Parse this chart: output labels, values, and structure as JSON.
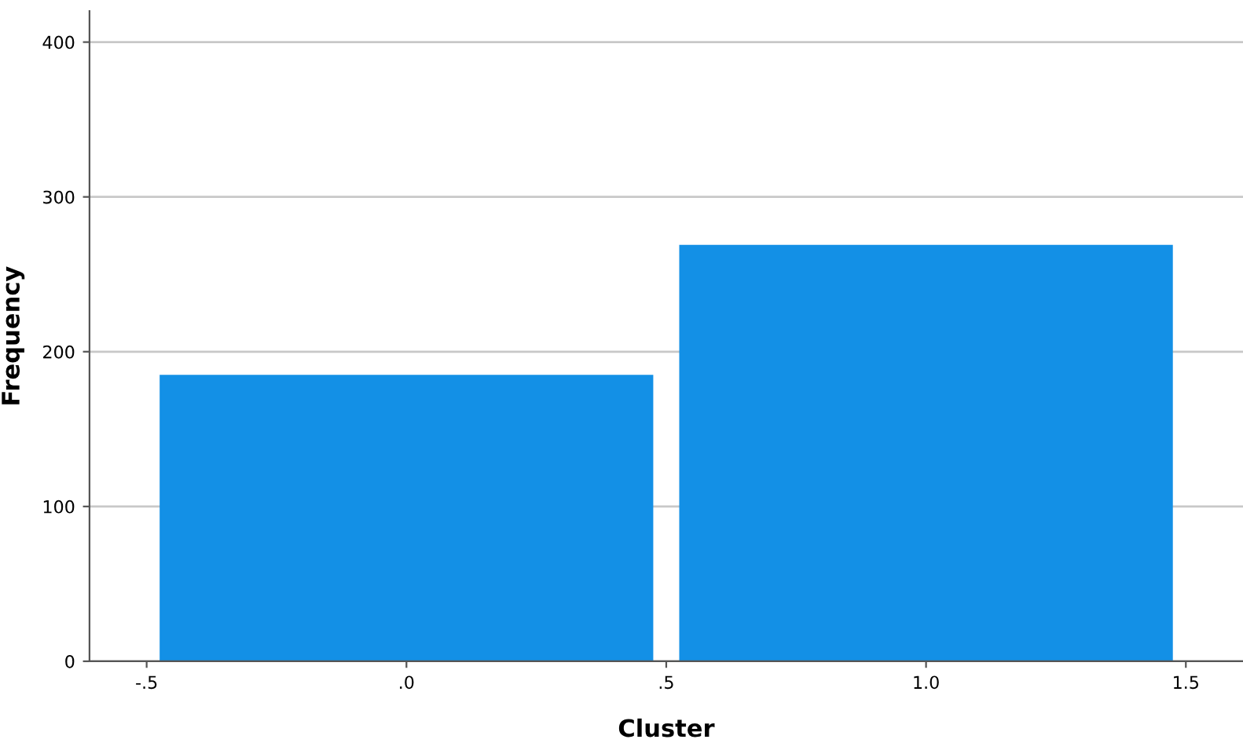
{
  "chart_data": {
    "type": "histogram",
    "xlabel": "Cluster",
    "ylabel": "Frequency",
    "bins": [
      -0.5,
      0.5,
      1.5
    ],
    "values": [
      185,
      269
    ],
    "color": "#1390e6",
    "xlim": [
      -0.61,
      1.61
    ],
    "ylim": [
      0,
      420
    ],
    "xticks": [
      {
        "value": -0.5,
        "label": "-.5"
      },
      {
        "value": 0,
        "label": ".0"
      },
      {
        "value": 0.5,
        "label": ".5"
      },
      {
        "value": 1.0,
        "label": "1.0"
      },
      {
        "value": 1.5,
        "label": "1.5"
      }
    ],
    "yticks": [
      0,
      100,
      200,
      300,
      400
    ],
    "grid": "y"
  }
}
